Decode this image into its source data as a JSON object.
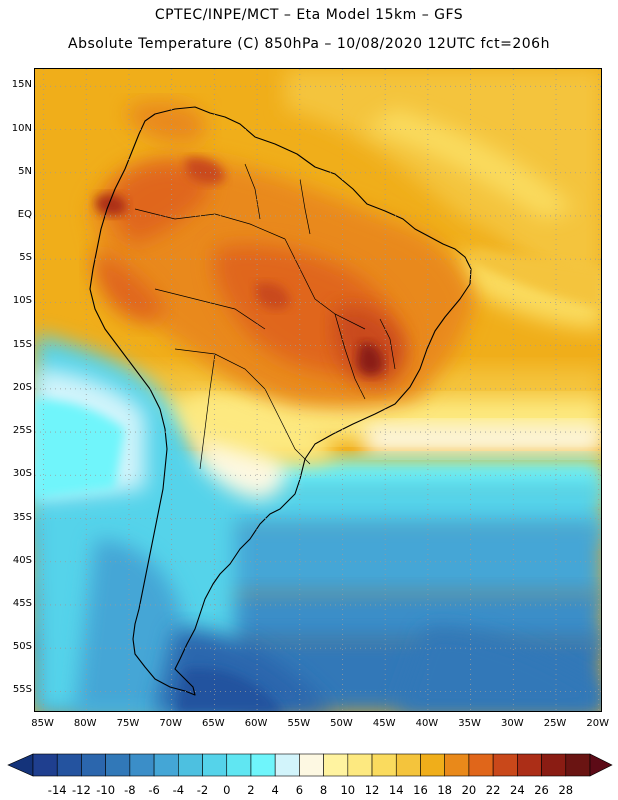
{
  "header": {
    "line1": "CPTEC/INPE/MCT –  Eta Model 15km – GFS",
    "line2": "Absolute Temperature (C) 850hPa – 10/08/2020 12UTC fct=206h"
  },
  "map": {
    "lat_labels": [
      "15N",
      "10N",
      "5N",
      "EQ",
      "5S",
      "10S",
      "15S",
      "20S",
      "25S",
      "30S",
      "35S",
      "40S",
      "45S",
      "50S",
      "55S"
    ],
    "lon_labels": [
      "85W",
      "80W",
      "75W",
      "70W",
      "65W",
      "60W",
      "55W",
      "50W",
      "45W",
      "40W",
      "35W",
      "30W",
      "25W",
      "20W"
    ],
    "lat_values": [
      15,
      10,
      5,
      0,
      -5,
      -10,
      -15,
      -20,
      -25,
      -30,
      -35,
      -40,
      -45,
      -50,
      -55
    ],
    "lon_values": [
      -85,
      -80,
      -75,
      -70,
      -65,
      -60,
      -55,
      -50,
      -45,
      -40,
      -35,
      -30,
      -25,
      -20
    ],
    "lon_range": [
      -86,
      -19.5
    ],
    "lat_range": [
      17,
      -57.5
    ],
    "gridlines": "dotted"
  },
  "colorbar": {
    "labels": [
      "-14",
      "-12",
      "-10",
      "-8",
      "-6",
      "-4",
      "-2",
      "0",
      "2",
      "4",
      "6",
      "8",
      "10",
      "12",
      "14",
      "16",
      "18",
      "20",
      "22",
      "24",
      "26",
      "28"
    ],
    "colors": [
      "#1f3f8f",
      "#24539f",
      "#2b66ad",
      "#3178b8",
      "#3b8ec8",
      "#44a6d6",
      "#4dc0e0",
      "#55d3ea",
      "#60e6f2",
      "#6ff5fb",
      "#d2f4fb",
      "#fdf8e2",
      "#fff3a0",
      "#fde980",
      "#fadb5e",
      "#f4c43c",
      "#f0ae1a",
      "#e9891a",
      "#e0661a",
      "#c9481a",
      "#ac2e17",
      "#8a1c13",
      "#6a1412"
    ],
    "under_color": "#14337a",
    "over_color": "#5c0a16"
  }
}
